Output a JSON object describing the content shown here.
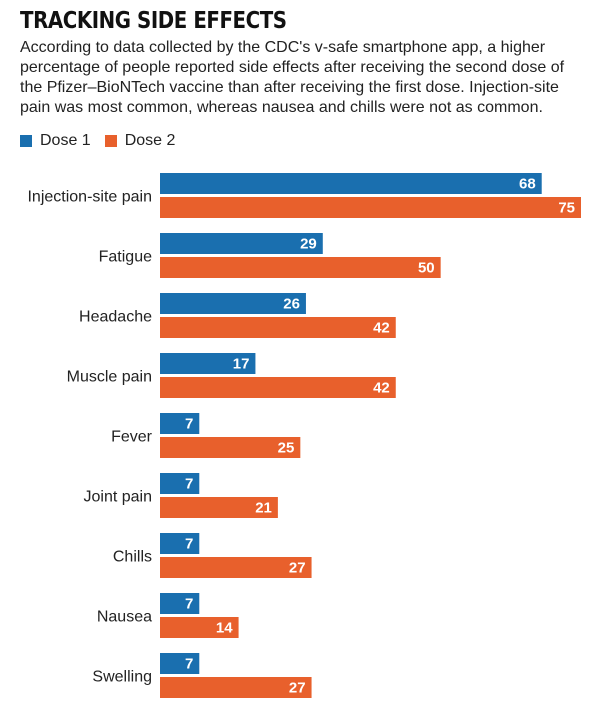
{
  "title": "TRACKING SIDE EFFECTS",
  "subtitle": "According to data collected by the CDC's v-safe smartphone app, a higher percentage of people reported side effects after receiving the second dose of the Pfizer–BioNTech vaccine than after receiving the first dose. Injection-site pain was most common, whereas nausea and chills were not as common.",
  "colors": {
    "dose1": "#1a6faf",
    "dose2": "#e8602c"
  },
  "chart_data": {
    "type": "bar",
    "orientation": "horizontal",
    "categories": [
      "Injection-site pain",
      "Fatigue",
      "Headache",
      "Muscle pain",
      "Fever",
      "Joint pain",
      "Chills",
      "Nausea",
      "Swelling"
    ],
    "series": [
      {
        "name": "Dose 1",
        "values": [
          68,
          29,
          26,
          17,
          7,
          7,
          7,
          7,
          7
        ]
      },
      {
        "name": "Dose 2",
        "values": [
          75,
          50,
          42,
          42,
          25,
          21,
          27,
          14,
          27
        ]
      }
    ],
    "xlim": [
      0,
      75
    ],
    "grid": false,
    "legend": "top-left"
  }
}
